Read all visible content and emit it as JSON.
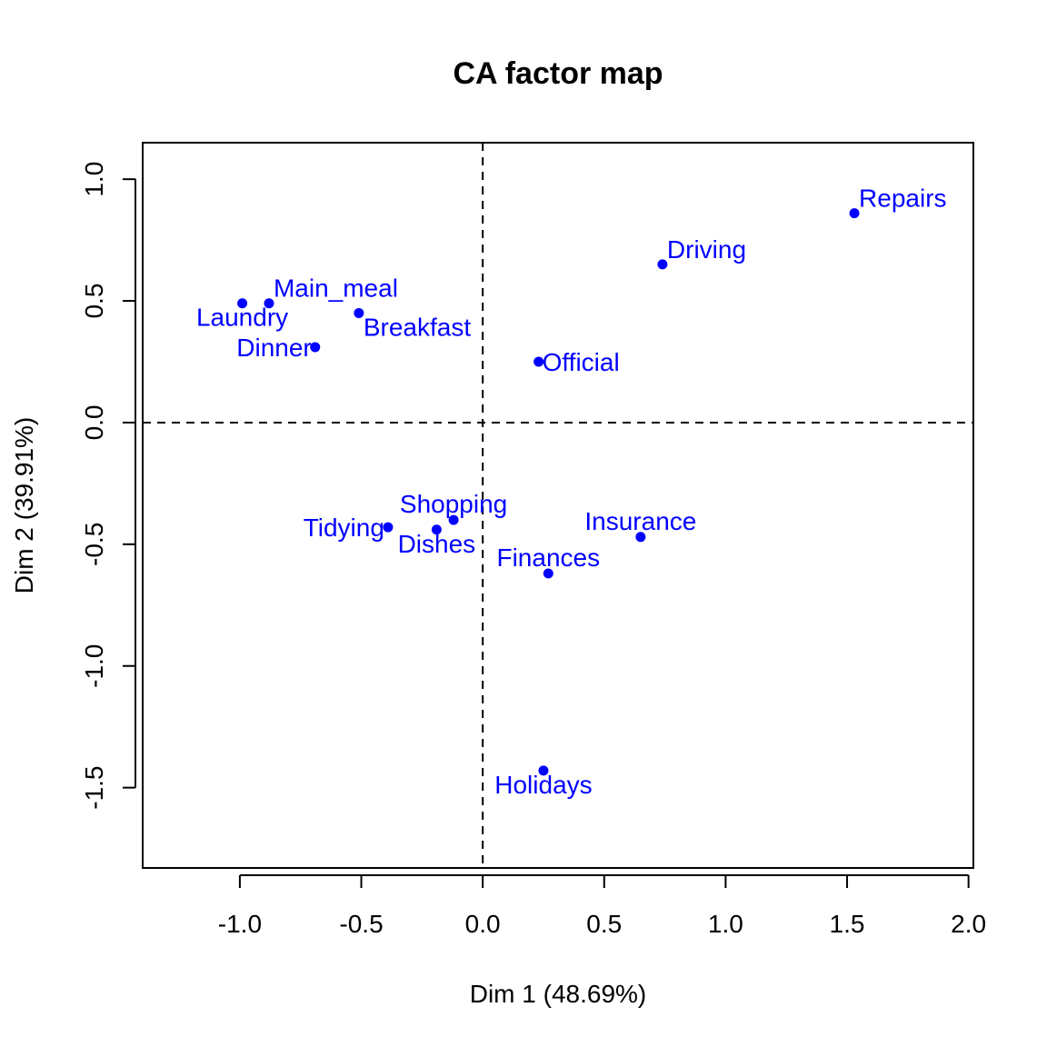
{
  "chart_data": {
    "type": "scatter",
    "title": "CA factor map",
    "xlabel": "Dim 1 (48.69%)",
    "ylabel": "Dim 2 (39.91%)",
    "xlim": [
      -1.4,
      2.02
    ],
    "ylim": [
      -1.83,
      1.15
    ],
    "x_ticks": [
      -1.0,
      -0.5,
      0.0,
      0.5,
      1.0,
      1.5,
      2.0
    ],
    "x_tick_labels": [
      "-1.0",
      "-0.5",
      "0.0",
      "0.5",
      "1.0",
      "1.5",
      "2.0"
    ],
    "y_ticks": [
      -1.5,
      -1.0,
      -0.5,
      0.0,
      0.5,
      1.0
    ],
    "y_tick_labels": [
      "-1.5",
      "-1.0",
      "-0.5",
      "0.0",
      "0.5",
      "1.0"
    ],
    "reference_lines": {
      "x": 0,
      "y": 0,
      "style": "dashed"
    },
    "grid": false,
    "point_color": "#0000FF",
    "points": [
      {
        "label": "Laundry",
        "x": -0.99,
        "y": 0.49,
        "label_side": "bottom"
      },
      {
        "label": "Main_meal",
        "x": -0.88,
        "y": 0.49,
        "label_side": "top-right"
      },
      {
        "label": "Dinner",
        "x": -0.69,
        "y": 0.31,
        "label_side": "left"
      },
      {
        "label": "Breakfast",
        "x": -0.51,
        "y": 0.45,
        "label_side": "bottom-right"
      },
      {
        "label": "Tidying",
        "x": -0.39,
        "y": -0.43,
        "label_side": "left"
      },
      {
        "label": "Dishes",
        "x": -0.19,
        "y": -0.44,
        "label_side": "bottom"
      },
      {
        "label": "Shopping",
        "x": -0.12,
        "y": -0.4,
        "label_side": "top"
      },
      {
        "label": "Official",
        "x": 0.23,
        "y": 0.25,
        "label_side": "right"
      },
      {
        "label": "Finances",
        "x": 0.27,
        "y": -0.62,
        "label_side": "top"
      },
      {
        "label": "Holidays",
        "x": 0.25,
        "y": -1.43,
        "label_side": "bottom"
      },
      {
        "label": "Insurance",
        "x": 0.65,
        "y": -0.47,
        "label_side": "top"
      },
      {
        "label": "Driving",
        "x": 0.74,
        "y": 0.65,
        "label_side": "top-right"
      },
      {
        "label": "Repairs",
        "x": 1.53,
        "y": 0.86,
        "label_side": "top-right"
      }
    ]
  }
}
